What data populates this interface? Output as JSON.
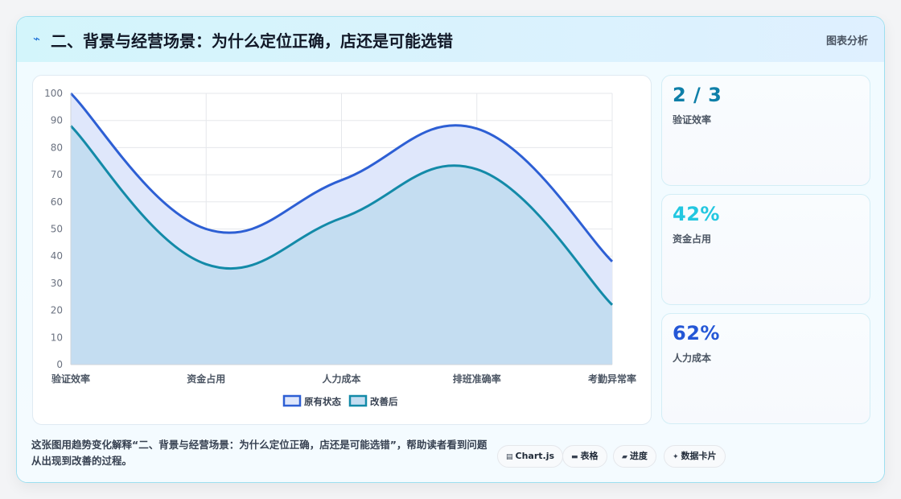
{
  "header": {
    "title": "二、背景与经营场景：为什么定位正确，店还是可能选错",
    "tag": "图表分析",
    "icon": "lightning-icon"
  },
  "stats": [
    {
      "value": "2 / 3",
      "label": "验证效率",
      "color": "#0e7fa8"
    },
    {
      "value": "42%",
      "label": "资金占用",
      "color": "#22c7e0"
    },
    {
      "value": "62%",
      "label": "人力成本",
      "color": "#2457d6"
    }
  ],
  "footer": {
    "text": "这张图用趋势变化解释“二、背景与经营场景：为什么定位正确，店还是可能选错”，帮助读者看到问题从出现到改善的过程。",
    "chips": [
      {
        "icon": "chart-icon",
        "glyph": "▤",
        "label": "Chart.js"
      },
      {
        "icon": "table-icon",
        "glyph": "▬",
        "label": "表格"
      },
      {
        "icon": "progress-icon",
        "glyph": "▰",
        "label": "进度"
      },
      {
        "icon": "sparkle-icon",
        "glyph": "✦",
        "label": "数据卡片"
      }
    ]
  },
  "chart_data": {
    "type": "area",
    "categories": [
      "验证效率",
      "资金占用",
      "人力成本",
      "排班准确率",
      "考勤异常率"
    ],
    "yticks": [
      "0",
      "10",
      "20",
      "30",
      "40",
      "50",
      "60",
      "70",
      "80",
      "90",
      "100"
    ],
    "ylim": [
      0,
      100
    ],
    "grid": true,
    "legend_position": "bottom",
    "series": [
      {
        "name": "原有状态",
        "values": [
          100,
          50,
          68,
          87,
          38
        ],
        "color": "#2d5fd4",
        "fill": "#dfe7fb"
      },
      {
        "name": "改善后",
        "values": [
          88,
          37,
          54,
          72,
          22
        ],
        "color": "#138aa8",
        "fill": "#c4ddf1"
      }
    ]
  }
}
